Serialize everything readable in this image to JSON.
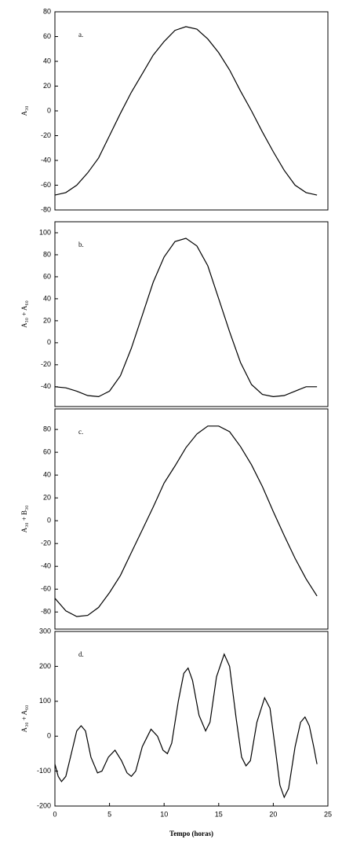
{
  "chart_data": [
    {
      "type": "line",
      "annotation": "a.",
      "ylabel": "A₃₀",
      "xlim": [
        0,
        25
      ],
      "ylim": [
        -80,
        80
      ],
      "yticks": [
        -80,
        -60,
        -40,
        -20,
        0,
        20,
        40,
        60,
        80
      ],
      "color": "#000000",
      "x": [
        0,
        1,
        2,
        3,
        4,
        5,
        6,
        7,
        8,
        9,
        10,
        11,
        12,
        13,
        14,
        15,
        16,
        17,
        18,
        19,
        20,
        21,
        22,
        23,
        24
      ],
      "values": [
        -68,
        -66,
        -60,
        -50,
        -38,
        -20,
        -2,
        15,
        30,
        45,
        56,
        65,
        68,
        66,
        58,
        47,
        33,
        16,
        0,
        -17,
        -33,
        -48,
        -60,
        -66,
        -68
      ]
    },
    {
      "type": "line",
      "annotation": "b.",
      "ylabel": "A₃₀ + A₆₀",
      "xlim": [
        0,
        25
      ],
      "ylim": [
        -58,
        110
      ],
      "yticks": [
        -40,
        -20,
        0,
        20,
        40,
        60,
        80,
        100
      ],
      "color": "#000000",
      "x": [
        0,
        1,
        2,
        3,
        4,
        5,
        6,
        7,
        8,
        9,
        10,
        11,
        12,
        13,
        14,
        15,
        16,
        17,
        18,
        19,
        20,
        21,
        22,
        23,
        24
      ],
      "values": [
        -40,
        -41,
        -44,
        -48,
        -49,
        -44,
        -30,
        -5,
        25,
        55,
        78,
        92,
        95,
        88,
        70,
        40,
        10,
        -18,
        -38,
        -47,
        -49,
        -48,
        -44,
        -40,
        -40
      ]
    },
    {
      "type": "line",
      "annotation": "c.",
      "ylabel": "A₃₀ + B₃₀",
      "xlim": [
        0,
        25
      ],
      "ylim": [
        -95,
        98
      ],
      "yticks": [
        -80,
        -60,
        -40,
        -20,
        0,
        20,
        40,
        60,
        80
      ],
      "color": "#000000",
      "x": [
        0,
        1,
        2,
        3,
        4,
        5,
        6,
        7,
        8,
        9,
        10,
        11,
        12,
        13,
        14,
        15,
        16,
        17,
        18,
        19,
        20,
        21,
        22,
        23,
        24
      ],
      "values": [
        -68,
        -79,
        -84,
        -83,
        -76,
        -63,
        -48,
        -28,
        -8,
        12,
        33,
        48,
        64,
        76,
        83,
        83,
        78,
        65,
        49,
        30,
        8,
        -13,
        -33,
        -51,
        -66
      ]
    },
    {
      "type": "line",
      "annotation": "d.",
      "ylabel": "A₃₀ + A₆₀",
      "xlabel": "Tempo (horas)",
      "xlim": [
        0,
        25
      ],
      "ylim": [
        -200,
        300
      ],
      "xticks": [
        0,
        5,
        10,
        15,
        20,
        25
      ],
      "yticks": [
        -200,
        -100,
        0,
        100,
        200,
        300
      ],
      "color": "#000000",
      "x": [
        0,
        0.3,
        0.6,
        1.0,
        1.5,
        2.0,
        2.4,
        2.8,
        3.3,
        3.9,
        4.3,
        4.9,
        5.5,
        6.1,
        6.6,
        7.0,
        7.4,
        8.0,
        8.8,
        9.4,
        9.9,
        10.3,
        10.7,
        11.3,
        11.8,
        12.2,
        12.6,
        13.2,
        13.8,
        14.2,
        14.8,
        15.5,
        16.0,
        16.6,
        17.1,
        17.5,
        17.9,
        18.5,
        19.2,
        19.7,
        20.2,
        20.6,
        21.0,
        21.4,
        22.0,
        22.5,
        22.9,
        23.3,
        23.7,
        24.0
      ],
      "values": [
        -80,
        -115,
        -130,
        -115,
        -50,
        15,
        30,
        15,
        -60,
        -105,
        -100,
        -60,
        -40,
        -70,
        -105,
        -115,
        -100,
        -30,
        20,
        0,
        -40,
        -50,
        -20,
        100,
        180,
        195,
        160,
        60,
        15,
        40,
        170,
        235,
        200,
        50,
        -60,
        -85,
        -70,
        40,
        110,
        80,
        -40,
        -140,
        -175,
        -150,
        -30,
        40,
        55,
        30,
        -30,
        -80
      ]
    }
  ]
}
